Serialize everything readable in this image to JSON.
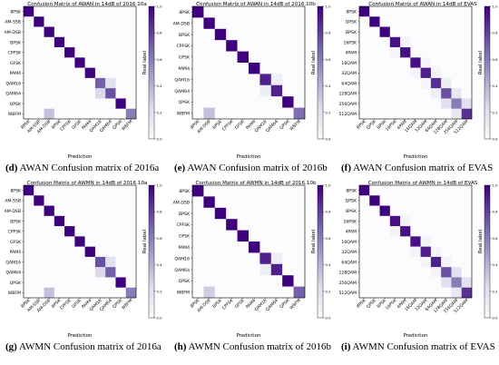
{
  "chart_data": [
    {
      "type": "heatmap",
      "title": "Confusion Matrix of AWAN in 14dB of 2016.10a",
      "caption_letter": "(d)",
      "caption_text": "AWAN Confusion matrix of 2016a",
      "xlabel": "Prediction",
      "ylabel": "Real label",
      "classes": [
        "8PSK",
        "AM-SSB",
        "AM-DSB",
        "BPSK",
        "CPFSK",
        "GFSK",
        "PAM4",
        "QAM16",
        "QAM64",
        "QPSK",
        "WBFM"
      ],
      "colorbar_ticks": [
        "1.0",
        "0.8",
        "0.6",
        "0.4",
        "0.2",
        "0.0"
      ],
      "zlim": [
        0,
        1
      ],
      "values": [
        [
          1,
          0,
          0,
          0,
          0,
          0,
          0,
          0,
          0,
          0,
          0
        ],
        [
          0,
          1,
          0,
          0,
          0,
          0,
          0,
          0,
          0,
          0,
          0
        ],
        [
          0,
          0,
          1,
          0,
          0,
          0,
          0,
          0,
          0,
          0,
          0
        ],
        [
          0,
          0,
          0,
          1,
          0,
          0,
          0,
          0,
          0,
          0,
          0
        ],
        [
          0,
          0,
          0,
          0,
          1,
          0,
          0,
          0,
          0,
          0,
          0
        ],
        [
          0,
          0,
          0,
          0,
          0,
          1,
          0,
          0,
          0,
          0,
          0
        ],
        [
          0,
          0,
          0,
          0,
          0,
          0,
          1,
          0,
          0,
          0,
          0
        ],
        [
          0,
          0,
          0,
          0,
          0,
          0,
          0,
          0.7,
          0.2,
          0,
          0
        ],
        [
          0,
          0,
          0,
          0,
          0,
          0,
          0,
          0.25,
          0.75,
          0,
          0
        ],
        [
          0,
          0,
          0,
          0,
          0,
          0,
          0,
          0,
          0,
          1,
          0
        ],
        [
          0,
          0,
          0.35,
          0,
          0,
          0,
          0,
          0,
          0,
          0,
          0.6
        ]
      ]
    },
    {
      "type": "heatmap",
      "title": "Confusion Matrix of AWAN in 14dB of 2016.10b",
      "caption_letter": "(e)",
      "caption_text": "AWAN Confusion matrix of 2016b",
      "xlabel": "Prediction",
      "ylabel": "Real label",
      "classes": [
        "8PSK",
        "AM-DSB",
        "BPSK",
        "CPFSK",
        "GFSK",
        "PAM4",
        "QAM16",
        "QAM64",
        "QPSK",
        "WBFM"
      ],
      "colorbar_ticks": [
        "1.0",
        "0.8",
        "0.6",
        "0.4",
        "0.2",
        "0.0"
      ],
      "zlim": [
        0,
        1
      ],
      "values": [
        [
          1,
          0,
          0,
          0,
          0,
          0,
          0,
          0,
          0,
          0
        ],
        [
          0,
          1,
          0,
          0,
          0,
          0,
          0,
          0,
          0,
          0
        ],
        [
          0,
          0,
          1,
          0,
          0,
          0,
          0,
          0,
          0,
          0
        ],
        [
          0,
          0,
          0,
          1,
          0,
          0,
          0,
          0,
          0,
          0
        ],
        [
          0,
          0,
          0,
          0,
          1,
          0,
          0,
          0,
          0,
          0
        ],
        [
          0,
          0,
          0,
          0,
          0,
          1,
          0,
          0,
          0,
          0
        ],
        [
          0,
          0,
          0,
          0,
          0,
          0,
          0.9,
          0.1,
          0,
          0
        ],
        [
          0,
          0,
          0,
          0,
          0,
          0,
          0.1,
          0.9,
          0,
          0
        ],
        [
          0,
          0,
          0,
          0,
          0,
          0,
          0,
          0,
          1,
          0
        ],
        [
          0,
          0.35,
          0,
          0,
          0,
          0,
          0,
          0,
          0,
          0.65
        ]
      ]
    },
    {
      "type": "heatmap",
      "title": "Confusion Matrix of AWAN in 14dB of EVAS",
      "caption_letter": "(f)",
      "caption_text": "AWAN Confusion matrix of EVAS",
      "xlabel": "Prediction",
      "ylabel": "Real label",
      "classes": [
        "8PSK",
        "QPSK",
        "BPSK",
        "16PSK",
        "4PAM",
        "16QAM",
        "32QAM",
        "64QAM",
        "128QAM",
        "256QAM",
        "512QAM"
      ],
      "colorbar_ticks": [
        "1.0",
        "0.8",
        "0.6",
        "0.4",
        "0.2",
        "0.0"
      ],
      "zlim": [
        0,
        1
      ],
      "values": [
        [
          1,
          0,
          0,
          0,
          0,
          0,
          0,
          0,
          0,
          0,
          0
        ],
        [
          0,
          1,
          0,
          0,
          0,
          0,
          0,
          0,
          0,
          0,
          0
        ],
        [
          0,
          0,
          1,
          0,
          0,
          0,
          0,
          0,
          0,
          0,
          0
        ],
        [
          0,
          0,
          0,
          0.95,
          0.05,
          0,
          0,
          0,
          0,
          0,
          0
        ],
        [
          0,
          0,
          0,
          0.05,
          0.95,
          0,
          0,
          0,
          0,
          0,
          0
        ],
        [
          0,
          0,
          0,
          0,
          0,
          0.95,
          0.05,
          0,
          0,
          0,
          0
        ],
        [
          0,
          0,
          0,
          0,
          0,
          0.05,
          0.9,
          0.05,
          0,
          0,
          0
        ],
        [
          0,
          0,
          0,
          0,
          0,
          0,
          0.05,
          0.85,
          0.1,
          0,
          0
        ],
        [
          0,
          0,
          0,
          0,
          0,
          0,
          0,
          0.1,
          0.75,
          0.15,
          0
        ],
        [
          0,
          0,
          0,
          0,
          0,
          0,
          0,
          0,
          0.2,
          0.6,
          0.2
        ],
        [
          0,
          0,
          0,
          0,
          0,
          0,
          0,
          0,
          0,
          0.15,
          0.85
        ]
      ]
    },
    {
      "type": "heatmap",
      "title": "Confusion Matrix of AWMN in 14dB of 2016.10a",
      "caption_letter": "(g)",
      "caption_text": "AWMN Confusion matrix of 2016a",
      "xlabel": "Prediction",
      "ylabel": "Real label",
      "classes": [
        "8PSK",
        "AM-SSB",
        "AM-DSB",
        "BPSK",
        "CPFSK",
        "GFSK",
        "PAM4",
        "QAM16",
        "QAM64",
        "QPSK",
        "WBFM"
      ],
      "colorbar_ticks": [
        "1.0",
        "0.8",
        "0.6",
        "0.4",
        "0.2",
        "0.0"
      ],
      "zlim": [
        0,
        1
      ],
      "values": [
        [
          1,
          0,
          0,
          0,
          0,
          0,
          0,
          0,
          0,
          0,
          0
        ],
        [
          0,
          1,
          0,
          0,
          0,
          0,
          0,
          0,
          0,
          0,
          0
        ],
        [
          0,
          0,
          1,
          0,
          0,
          0,
          0,
          0,
          0,
          0,
          0
        ],
        [
          0,
          0,
          0,
          1,
          0,
          0,
          0,
          0,
          0,
          0,
          0
        ],
        [
          0,
          0,
          0,
          0,
          1,
          0,
          0,
          0,
          0,
          0,
          0
        ],
        [
          0,
          0,
          0,
          0,
          0,
          1,
          0,
          0,
          0,
          0,
          0
        ],
        [
          0,
          0,
          0,
          0,
          0,
          0,
          1,
          0,
          0,
          0,
          0
        ],
        [
          0,
          0,
          0,
          0,
          0,
          0,
          0,
          0.75,
          0.2,
          0,
          0
        ],
        [
          0,
          0,
          0,
          0,
          0,
          0,
          0,
          0.25,
          0.7,
          0,
          0
        ],
        [
          0,
          0,
          0,
          0,
          0,
          0,
          0,
          0,
          0,
          1,
          0
        ],
        [
          0,
          0,
          0.35,
          0,
          0,
          0,
          0,
          0,
          0,
          0,
          0.6
        ]
      ]
    },
    {
      "type": "heatmap",
      "title": "Confusion Matrix of AWMN in 14dB of 2016.10b",
      "caption_letter": "(h)",
      "caption_text": "AWMN Confusion matrix of 2016b",
      "xlabel": "Prediction",
      "ylabel": "Real label",
      "classes": [
        "8PSK",
        "AM-DSB",
        "BPSK",
        "CPFSK",
        "GFSK",
        "PAM4",
        "QAM16",
        "QAM64",
        "QPSK",
        "WBFM"
      ],
      "colorbar_ticks": [
        "1.0",
        "0.8",
        "0.6",
        "0.4",
        "0.2",
        "0.0"
      ],
      "zlim": [
        0,
        1
      ],
      "values": [
        [
          1,
          0,
          0,
          0,
          0,
          0,
          0,
          0,
          0,
          0
        ],
        [
          0,
          1,
          0,
          0,
          0,
          0,
          0,
          0,
          0,
          0
        ],
        [
          0,
          0,
          1,
          0,
          0,
          0,
          0,
          0,
          0,
          0
        ],
        [
          0,
          0,
          0,
          1,
          0,
          0,
          0,
          0,
          0,
          0
        ],
        [
          0,
          0,
          0,
          0,
          1,
          0,
          0,
          0,
          0,
          0
        ],
        [
          0,
          0,
          0,
          0,
          0,
          1,
          0,
          0,
          0,
          0
        ],
        [
          0,
          0,
          0,
          0,
          0,
          0,
          0.9,
          0.1,
          0,
          0
        ],
        [
          0,
          0,
          0,
          0,
          0,
          0,
          0.1,
          0.9,
          0,
          0
        ],
        [
          0,
          0,
          0,
          0,
          0,
          0,
          0,
          0,
          1,
          0
        ],
        [
          0,
          0.3,
          0,
          0,
          0,
          0,
          0,
          0,
          0,
          0.7
        ]
      ]
    },
    {
      "type": "heatmap",
      "title": "Confusion Matrix of AWMN in 14dB of EVAS",
      "caption_letter": "(i)",
      "caption_text": "AWMN Confusion matrix of EVAS",
      "xlabel": "Prediction",
      "ylabel": "Real label",
      "classes": [
        "8PSK",
        "QPSK",
        "BPSK",
        "16PSK",
        "4PAM",
        "16QAM",
        "32QAM",
        "64QAM",
        "128QAM",
        "256QAM",
        "512QAM"
      ],
      "colorbar_ticks": [
        "1.0",
        "0.8",
        "0.6",
        "0.4",
        "0.2",
        "0.0"
      ],
      "zlim": [
        0,
        1
      ],
      "values": [
        [
          1,
          0,
          0,
          0,
          0,
          0,
          0,
          0,
          0,
          0,
          0
        ],
        [
          0,
          1,
          0,
          0,
          0,
          0,
          0,
          0,
          0,
          0,
          0
        ],
        [
          0,
          0,
          1,
          0,
          0,
          0,
          0,
          0,
          0,
          0,
          0
        ],
        [
          0,
          0,
          0,
          0.95,
          0.05,
          0,
          0,
          0,
          0,
          0,
          0
        ],
        [
          0,
          0,
          0,
          0.05,
          0.95,
          0,
          0,
          0,
          0,
          0,
          0
        ],
        [
          0,
          0,
          0,
          0,
          0,
          0.95,
          0.05,
          0,
          0,
          0,
          0
        ],
        [
          0,
          0,
          0,
          0,
          0,
          0.05,
          0.9,
          0.05,
          0,
          0,
          0
        ],
        [
          0,
          0,
          0,
          0,
          0,
          0,
          0.05,
          0.9,
          0.05,
          0,
          0
        ],
        [
          0,
          0,
          0,
          0,
          0,
          0,
          0,
          0.05,
          0.75,
          0.2,
          0
        ],
        [
          0,
          0,
          0,
          0,
          0,
          0,
          0,
          0,
          0.2,
          0.6,
          0.2
        ],
        [
          0,
          0,
          0,
          0,
          0,
          0,
          0,
          0,
          0,
          0.15,
          0.85
        ]
      ]
    }
  ],
  "colors": {
    "low": "#fcfbfd",
    "high": "#3f007d",
    "axis": "#000000"
  }
}
